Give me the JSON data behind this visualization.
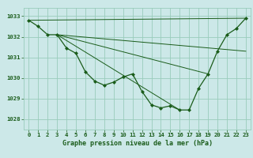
{
  "title": "Graphe pression niveau de la mer (hPa)",
  "background_color": "#cce8e8",
  "grid_color": "#99ccbb",
  "line_color": "#1a5c1a",
  "marker_color": "#1a5c1a",
  "xlim": [
    -0.5,
    23.5
  ],
  "ylim": [
    1027.5,
    1033.4
  ],
  "yticks": [
    1028,
    1029,
    1030,
    1031,
    1032,
    1033
  ],
  "xticks": [
    0,
    1,
    2,
    3,
    4,
    5,
    6,
    7,
    8,
    9,
    10,
    11,
    12,
    13,
    14,
    15,
    16,
    17,
    18,
    19,
    20,
    21,
    22,
    23
  ],
  "main_series_x": [
    0,
    1,
    2,
    3,
    4,
    5,
    6,
    7,
    8,
    9,
    10,
    11,
    12,
    13,
    14,
    15,
    16,
    17,
    18,
    19,
    20,
    21,
    22,
    23
  ],
  "main_series_y": [
    1032.8,
    1032.5,
    1032.1,
    1032.1,
    1031.45,
    1031.2,
    1030.3,
    1029.85,
    1029.65,
    1029.8,
    1030.05,
    1030.2,
    1029.35,
    1028.7,
    1028.55,
    1028.65,
    1028.45,
    1028.45,
    1029.5,
    1030.2,
    1031.3,
    1032.1,
    1032.4,
    1032.9
  ],
  "trend_lines": [
    {
      "x": [
        0,
        23
      ],
      "y": [
        1032.8,
        1032.9
      ]
    },
    {
      "x": [
        3,
        23
      ],
      "y": [
        1032.1,
        1031.3
      ]
    },
    {
      "x": [
        3,
        19
      ],
      "y": [
        1032.1,
        1030.2
      ]
    },
    {
      "x": [
        3,
        16
      ],
      "y": [
        1032.1,
        1028.45
      ]
    }
  ],
  "xlabel_fontsize": 6.0,
  "tick_fontsize": 5.2
}
